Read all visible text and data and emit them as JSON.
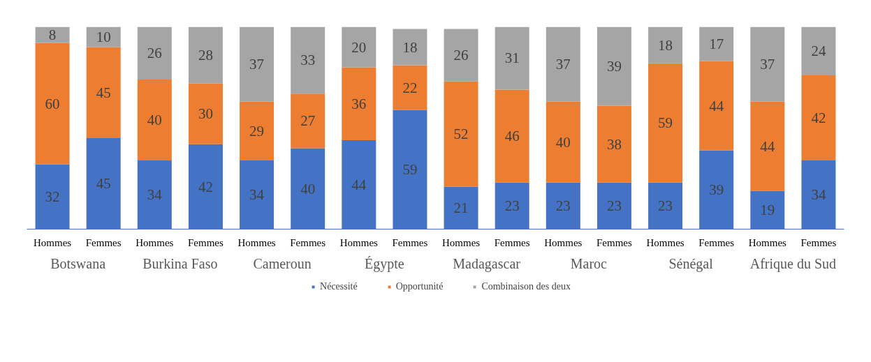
{
  "chart_data": {
    "type": "bar",
    "stacked": true,
    "data_labels": true,
    "grid": false,
    "legend": "bottom",
    "categories": [
      "Hommes",
      "Femmes",
      "Hommes",
      "Femmes",
      "Hommes",
      "Femmes",
      "Hommes",
      "Femmes",
      "Hommes",
      "Femmes",
      "Hommes",
      "Femmes",
      "Hommes",
      "Femmes",
      "Hommes",
      "Femmes"
    ],
    "series": [
      {
        "name": "Nécessité",
        "color": "#4472c4",
        "values": [
          32,
          45,
          34,
          42,
          34,
          40,
          44,
          59,
          21,
          23,
          23,
          23,
          23,
          39,
          19,
          34
        ]
      },
      {
        "name": "Opportunité",
        "color": "#ed7d31",
        "values": [
          60,
          45,
          40,
          30,
          29,
          27,
          36,
          22,
          52,
          46,
          40,
          38,
          59,
          44,
          44,
          42
        ]
      },
      {
        "name": "Combinaison des deux",
        "color": "#a5a5a5",
        "values": [
          8,
          10,
          26,
          28,
          37,
          33,
          20,
          18,
          26,
          31,
          37,
          39,
          18,
          17,
          37,
          24
        ]
      }
    ],
    "annotations": [
      "Botswana",
      "Burkina Faso",
      "Cameroun",
      "Égypte",
      "Madagascar",
      "Maroc",
      "Sénégal",
      "Afrique du Sud"
    ]
  }
}
